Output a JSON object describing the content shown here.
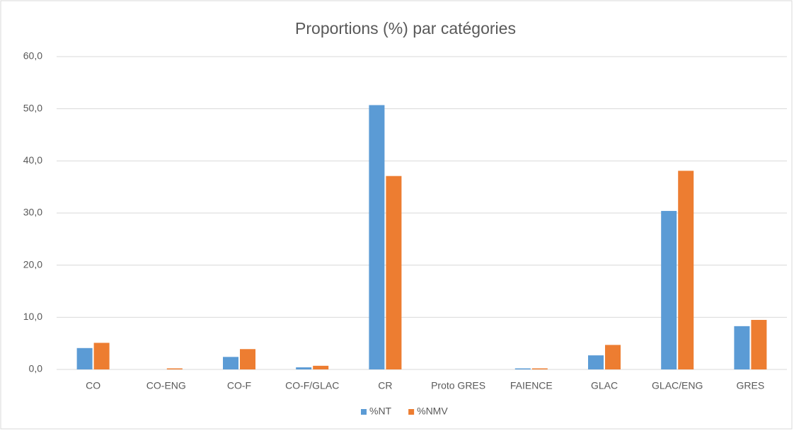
{
  "chart_data": {
    "type": "bar",
    "title": "Proportions (%) par catégories",
    "categories": [
      "CO",
      "CO-ENG",
      "CO-F",
      "CO-F/GLAC",
      "CR",
      "Proto GRES",
      "FAIENCE",
      "GLAC",
      "GLAC/ENG",
      "GRES"
    ],
    "series": [
      {
        "name": "%NT",
        "color": "#5b9bd5",
        "values": [
          4.1,
          0,
          2.4,
          0.4,
          50.7,
          0,
          0.2,
          2.7,
          30.4,
          8.3
        ]
      },
      {
        "name": "%NMV",
        "color": "#ed7d31",
        "values": [
          5.1,
          0.2,
          3.9,
          0.7,
          37.1,
          0,
          0.2,
          4.7,
          38.1,
          9.5
        ]
      }
    ],
    "ylim": [
      0,
      60
    ],
    "yticks": [
      {
        "value": 0,
        "label": "0,0"
      },
      {
        "value": 10,
        "label": "10,0"
      },
      {
        "value": 20,
        "label": "20,0"
      },
      {
        "value": 30,
        "label": "30,0"
      },
      {
        "value": 40,
        "label": "40,0"
      },
      {
        "value": 50,
        "label": "50,0"
      },
      {
        "value": 60,
        "label": "60,0"
      }
    ],
    "grid": true,
    "legend": "bottom"
  }
}
